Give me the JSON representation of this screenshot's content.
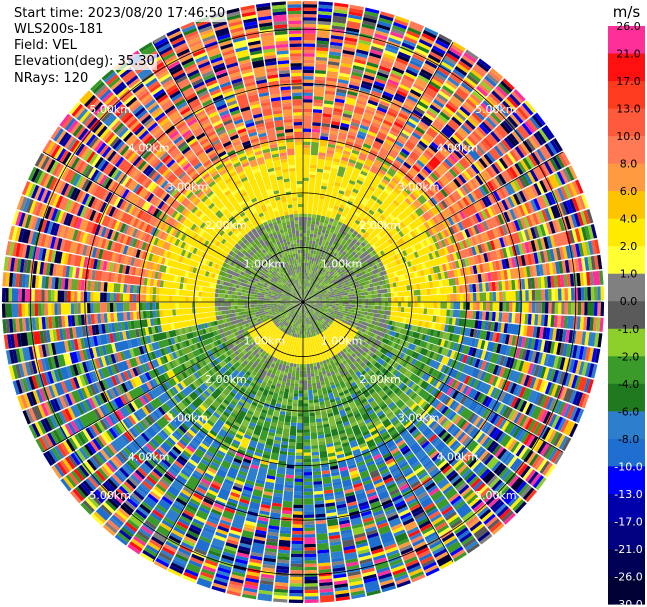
{
  "info": {
    "start_time": "Start time: 2023/08/20 17:46:50",
    "instrument": "WLS200s-181",
    "field": "Field: VEL",
    "elevation": "Elevation(deg): 35.30",
    "nrays": "NRays: 120"
  },
  "chart_data": {
    "type": "heatmap",
    "projection": "polar-ppi",
    "title": "",
    "field": "VEL",
    "n_rays": 120,
    "range_rings_km": [
      1.0,
      2.0,
      3.0,
      4.0,
      5.0
    ],
    "range_ring_labels": [
      "1.00km",
      "2.00km",
      "3.00km",
      "4.00km",
      "5.00km"
    ],
    "max_range_km": 5.5,
    "grid": true,
    "colorbar": {
      "unit": "m/s",
      "ticks": [
        "26.0",
        "21.0",
        "17.0",
        "13.0",
        "10.0",
        "8.0",
        "6.0",
        "4.0",
        "2.0",
        "1.0",
        "0.0",
        "-1.0",
        "-2.0",
        "-4.0",
        "-6.0",
        "-8.0",
        "-10.0",
        "-13.0",
        "-17.0",
        "-21.0",
        "-26.0",
        "-30.0"
      ],
      "colors": [
        "#ff2f9a",
        "#ff1010",
        "#ff3b1e",
        "#ff5a3c",
        "#ff7a55",
        "#ff9a40",
        "#ffc400",
        "#ffea00",
        "#ffff33",
        "#808080",
        "#5a5a5a",
        "#8ccf2a",
        "#3a9a2a",
        "#1f7a1f",
        "#2d7fce",
        "#1f6fd0",
        "#0000ff",
        "#0000aa",
        "#000080",
        "#000055",
        "#000035"
      ]
    },
    "pattern": {
      "inner_km": [
        0,
        1.6
      ],
      "inner_colors": [
        "#6aa830",
        "#82bd3a",
        "#5e9e2c",
        "#76787b"
      ],
      "south_band_km": [
        0.6,
        1.1
      ],
      "south_band_color": "#ffe500",
      "yellow_ring_km": [
        1.6,
        2.6
      ],
      "yellow_ring_color": "#ffe500",
      "outer_north_color": "#ff7a55",
      "outer_south_color": "#2d7fce",
      "noise_start_km": 3.0
    }
  }
}
